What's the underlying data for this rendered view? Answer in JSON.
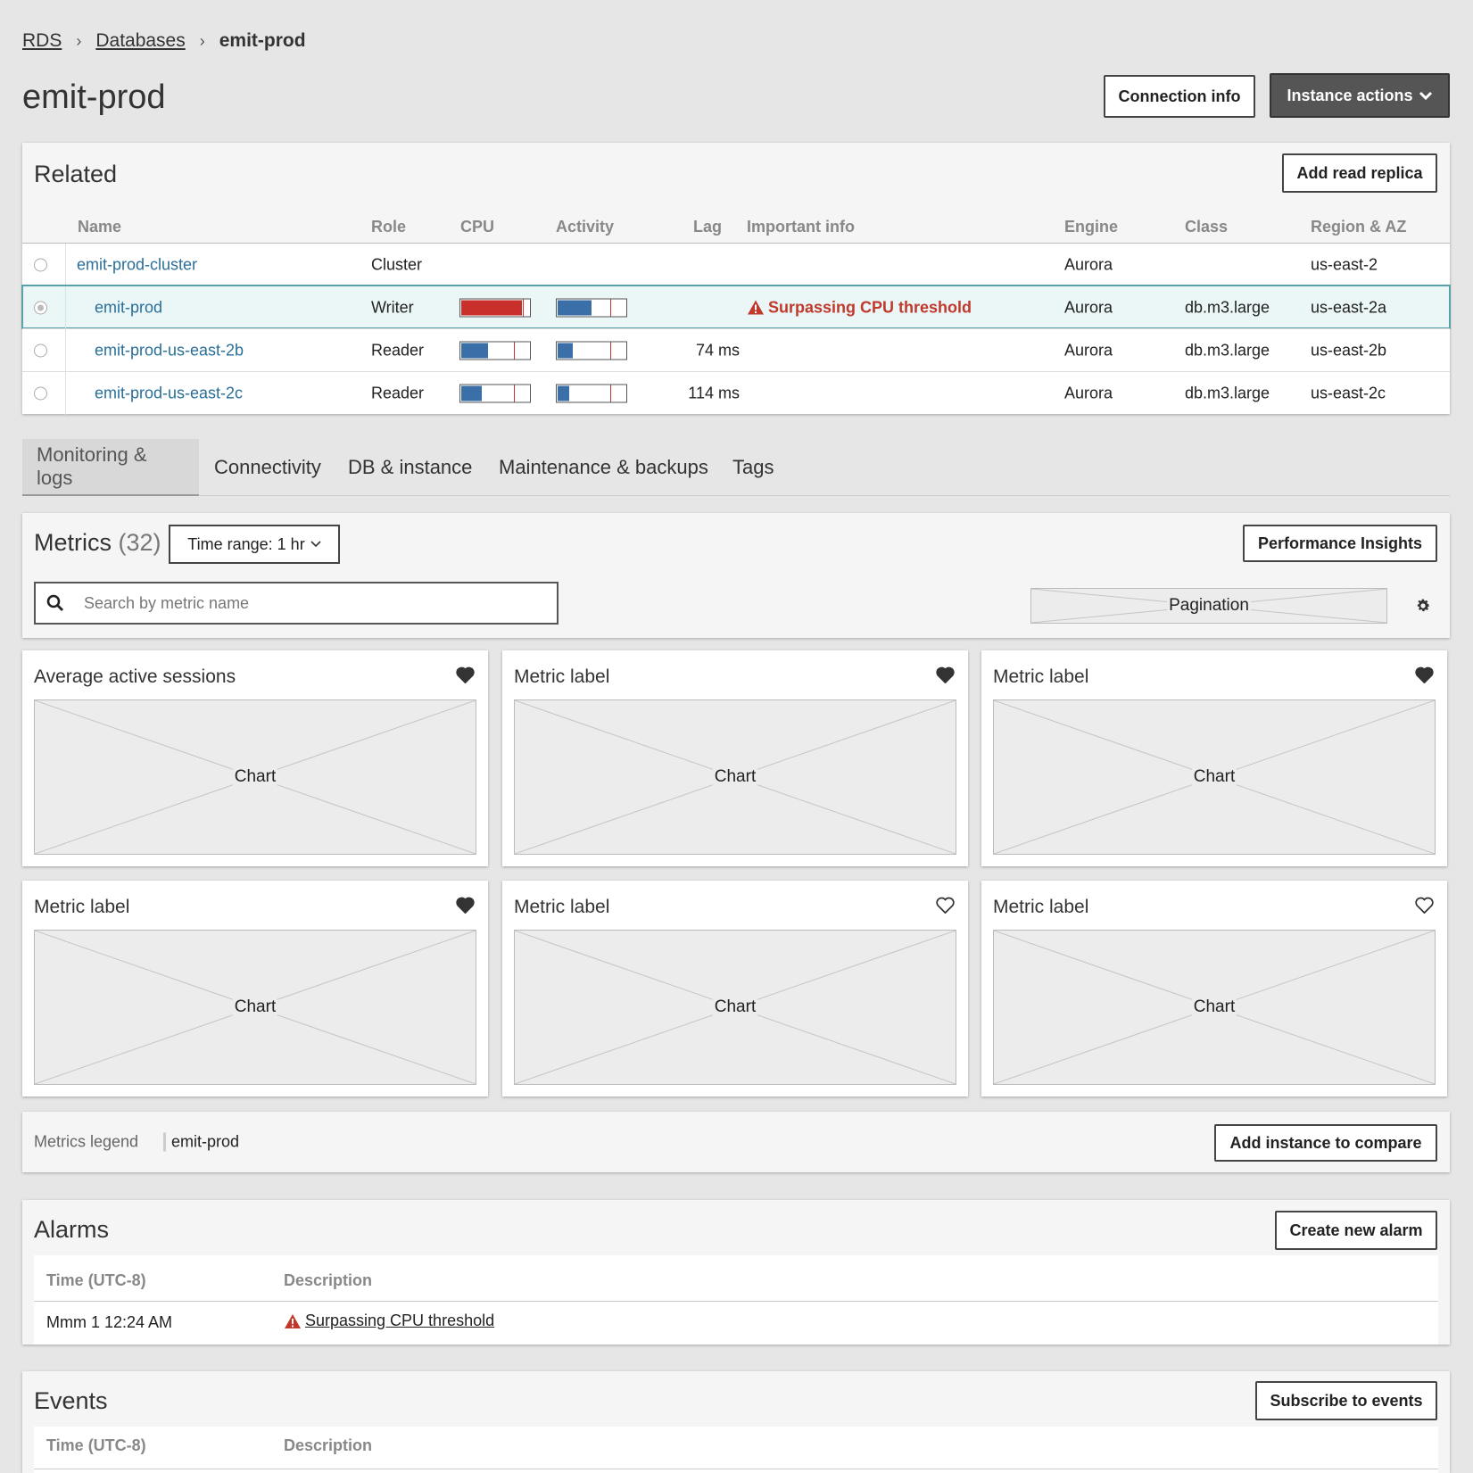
{
  "breadcrumb": {
    "root": "RDS",
    "parent": "Databases",
    "current": "emit-prod"
  },
  "page": {
    "title": "emit-prod"
  },
  "header_actions": {
    "connection_info": "Connection info",
    "instance_actions": "Instance actions"
  },
  "related": {
    "title": "Related",
    "add_replica": "Add read replica",
    "columns": [
      "Name",
      "Role",
      "CPU",
      "Activity",
      "Lag",
      "Important info",
      "Engine",
      "Class",
      "Region & AZ"
    ],
    "rows": [
      {
        "name": "emit-prod-cluster",
        "role": "Cluster",
        "lag": "",
        "info": "",
        "engine": "Aurora",
        "class": "",
        "region": "us-east-2"
      },
      {
        "name": "emit-prod",
        "role": "Writer",
        "cpu": 0.9,
        "activity": 0.5,
        "lag": "",
        "info": "Surpassing CPU threshold",
        "engine": "Aurora",
        "class": "db.m3.large",
        "region": "us-east-2a"
      },
      {
        "name": "emit-prod-us-east-2b",
        "role": "Reader",
        "cpu": 0.4,
        "activity": 0.22,
        "lag": "74 ms",
        "info": "",
        "engine": "Aurora",
        "class": "db.m3.large",
        "region": "us-east-2b"
      },
      {
        "name": "emit-prod-us-east-2c",
        "role": "Reader",
        "cpu": 0.3,
        "activity": 0.17,
        "lag": "114 ms",
        "info": "",
        "engine": "Aurora",
        "class": "db.m3.large",
        "region": "us-east-2c"
      }
    ]
  },
  "tabs": [
    "Monitoring & logs",
    "Connectivity",
    "DB & instance",
    "Maintenance & backups",
    "Tags"
  ],
  "metrics": {
    "title": "Metrics",
    "count": "(32)",
    "time_range": "Time range: 1 hr",
    "performance_insights": "Performance Insights",
    "search_placeholder": "Search by metric name",
    "pagination": "Pagination",
    "chart_placeholder": "Chart",
    "cards": [
      {
        "label": "Average active sessions",
        "favorite": true
      },
      {
        "label": "Metric label",
        "favorite": true
      },
      {
        "label": "Metric label",
        "favorite": true
      },
      {
        "label": "Metric label",
        "favorite": true
      },
      {
        "label": "Metric label",
        "favorite": false
      },
      {
        "label": "Metric label",
        "favorite": false
      }
    ]
  },
  "legend": {
    "label": "Metrics legend",
    "value": "emit-prod",
    "compare": "Add instance to compare"
  },
  "alarms": {
    "title": "Alarms",
    "create": "Create new alarm",
    "col_time": "Time (UTC-8)",
    "col_desc": "Description",
    "rows": [
      {
        "time": "Mmm 1 12:24 AM",
        "desc": "Surpassing CPU threshold"
      }
    ]
  },
  "events": {
    "title": "Events",
    "subscribe": "Subscribe to events",
    "col_time": "Time (UTC-8)",
    "col_desc": "Description"
  },
  "colors": {
    "danger": "#c0392b",
    "bar_blue": "#3a6fa8",
    "bar_red": "#c9302c",
    "link": "#2a6f9a"
  }
}
